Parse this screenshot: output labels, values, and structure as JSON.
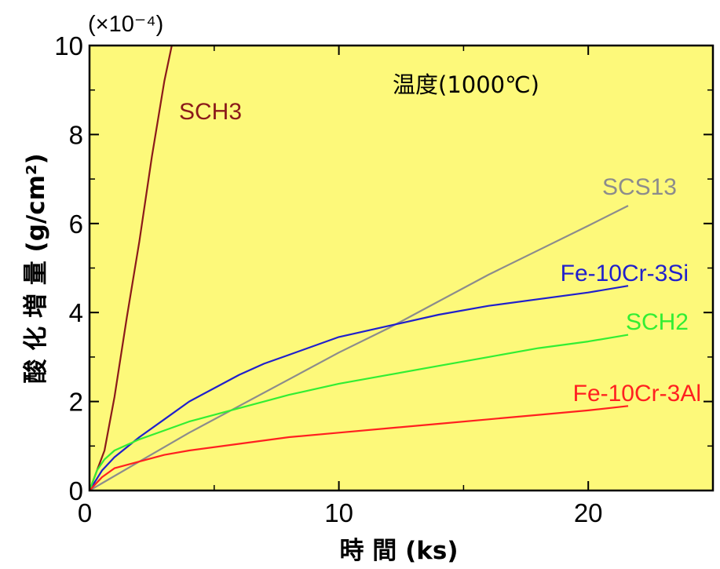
{
  "chart_data": {
    "type": "line",
    "xlabel": "時 間 (ks)",
    "ylabel": "酸 化 増 量 (g/cm²)",
    "y_multiplier": "(×10⁻⁴)",
    "annotation": "温度(1000℃)",
    "xlim": [
      0,
      25
    ],
    "ylim": [
      0,
      10
    ],
    "x_ticks": [
      0,
      10,
      20
    ],
    "y_ticks": [
      0,
      2,
      4,
      6,
      8,
      10
    ],
    "plot_background": "#fdf97a",
    "grid": false,
    "series": [
      {
        "name": "SCH3",
        "color": "#8b1a1a",
        "x": [
          0,
          0.3,
          0.6,
          1.0,
          1.5,
          2.0,
          2.5,
          3.0,
          3.3
        ],
        "y": [
          0,
          0.45,
          0.9,
          2.1,
          3.9,
          5.6,
          7.5,
          9.2,
          10.0
        ]
      },
      {
        "name": "SCS13",
        "color": "#8c8c8c",
        "x": [
          0,
          2,
          4,
          6,
          8,
          10,
          12,
          14,
          16,
          18,
          20,
          21.6
        ],
        "y": [
          0,
          0.65,
          1.3,
          1.9,
          2.5,
          3.1,
          3.65,
          4.25,
          4.85,
          5.4,
          5.95,
          6.4
        ]
      },
      {
        "name": "Fe-10Cr-3Si",
        "color": "#2020cc",
        "x": [
          0,
          0.5,
          1,
          2,
          3,
          4,
          5,
          6,
          7,
          8,
          10,
          12,
          14,
          16,
          18,
          20,
          21.6
        ],
        "y": [
          0,
          0.45,
          0.75,
          1.2,
          1.6,
          2.0,
          2.3,
          2.6,
          2.85,
          3.05,
          3.45,
          3.7,
          3.95,
          4.15,
          4.3,
          4.45,
          4.6
        ]
      },
      {
        "name": "SCH2",
        "color": "#33ee33",
        "x": [
          0,
          0.3,
          0.6,
          1,
          2,
          3,
          4,
          6,
          8,
          10,
          12,
          14,
          16,
          18,
          20,
          21.6
        ],
        "y": [
          0,
          0.45,
          0.7,
          0.9,
          1.15,
          1.35,
          1.55,
          1.85,
          2.15,
          2.4,
          2.6,
          2.8,
          3.0,
          3.2,
          3.35,
          3.5
        ]
      },
      {
        "name": "Fe-10Cr-3Al",
        "color": "#ff2020",
        "x": [
          0,
          0.5,
          1,
          2,
          3,
          4,
          6,
          8,
          10,
          12,
          14,
          16,
          18,
          20,
          21.6
        ],
        "y": [
          0,
          0.3,
          0.5,
          0.65,
          0.8,
          0.9,
          1.05,
          1.2,
          1.3,
          1.4,
          1.5,
          1.6,
          1.7,
          1.8,
          1.9
        ]
      }
    ]
  }
}
